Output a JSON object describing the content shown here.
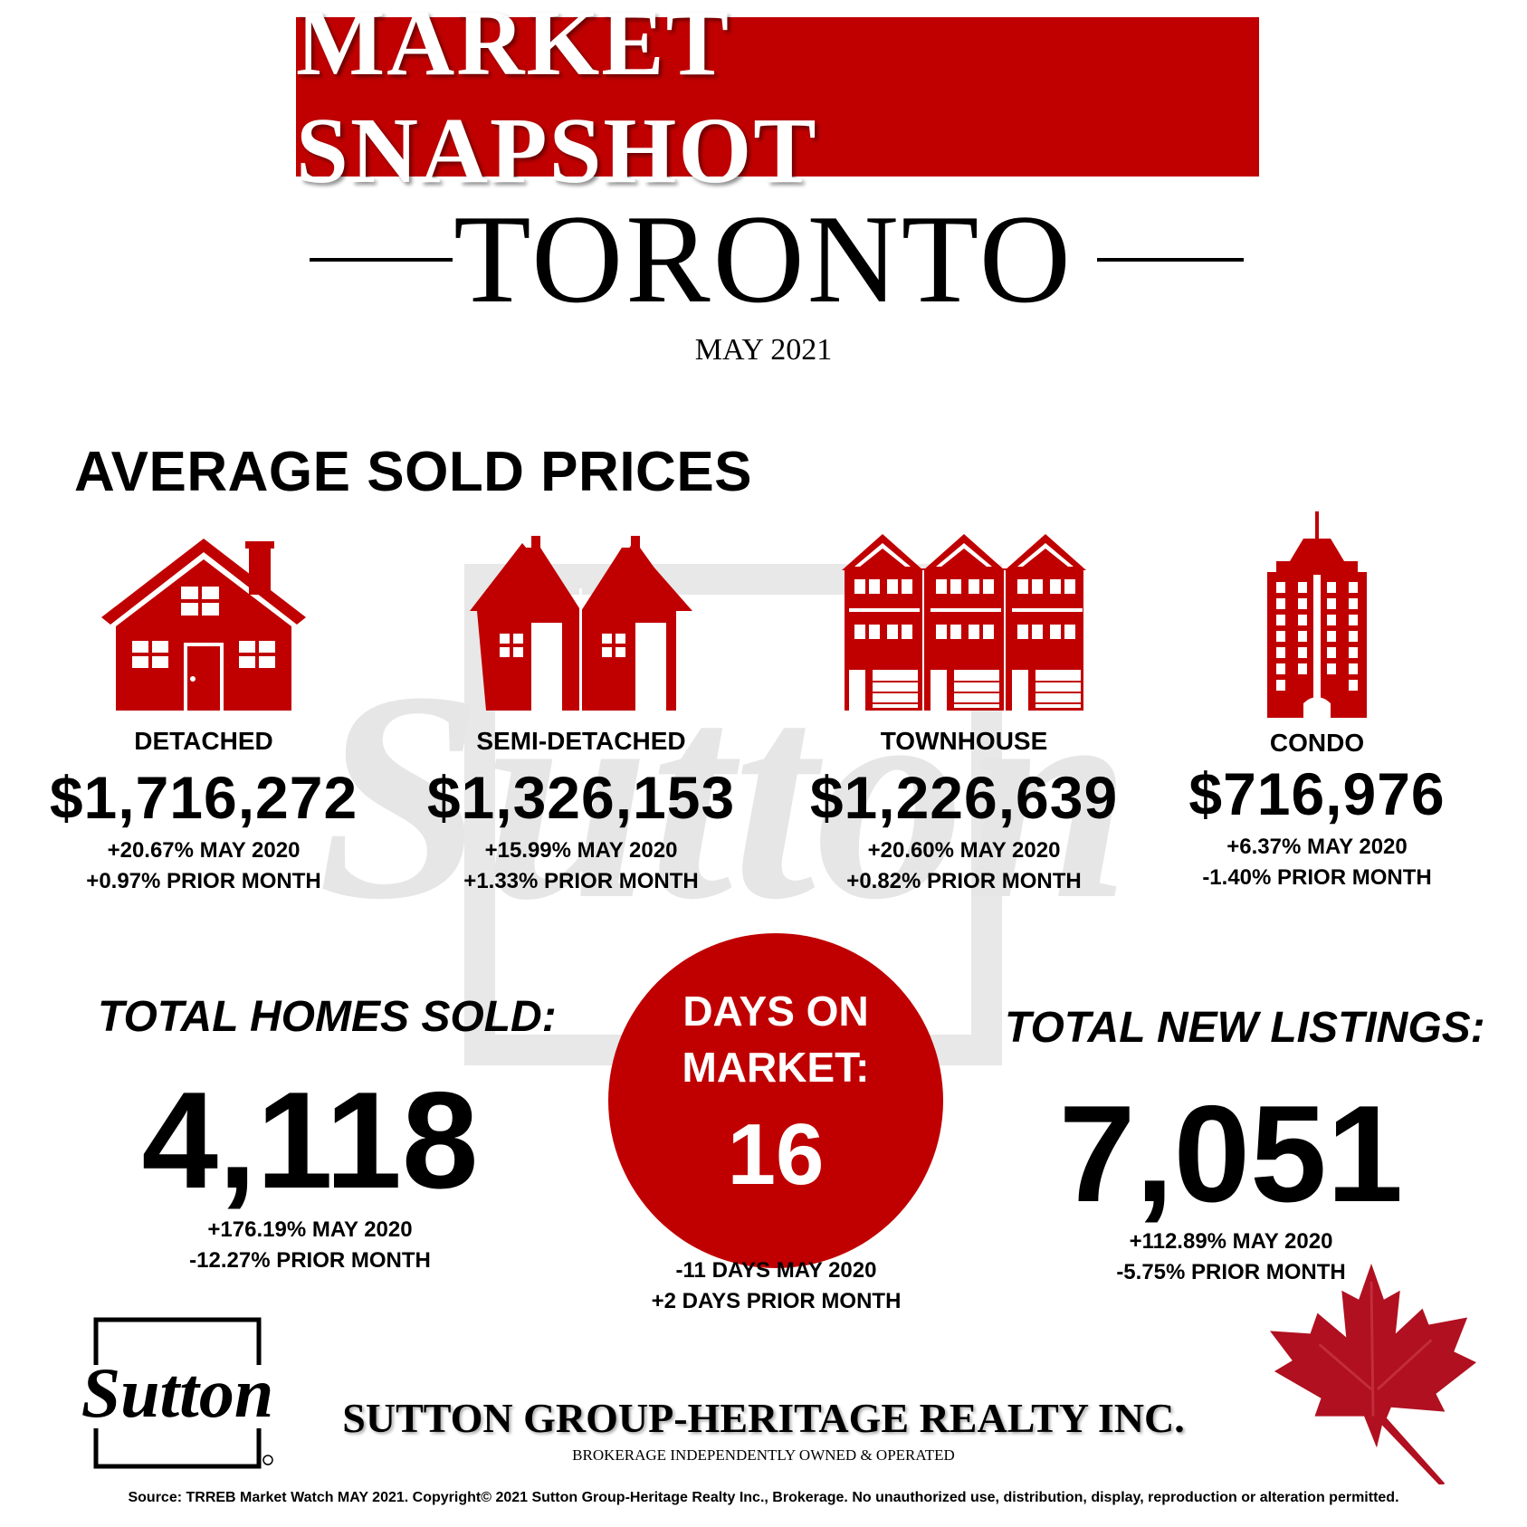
{
  "header": {
    "title": "MARKET SNAPSHOT",
    "city": "TORONTO",
    "month": "MAY 2021"
  },
  "average_prices": {
    "title": "AVERAGE SOLD PRICES",
    "items": [
      {
        "label": "DETACHED",
        "price": "$1,716,272",
        "change_year": "+20.67% MAY 2020",
        "change_month": "+0.97% PRIOR MONTH",
        "icon": "detached-house-icon"
      },
      {
        "label": "SEMI-DETACHED",
        "price": "$1,326,153",
        "change_year": "+15.99% MAY 2020",
        "change_month": "+1.33% PRIOR MONTH",
        "icon": "semi-detached-house-icon"
      },
      {
        "label": "TOWNHOUSE",
        "price": "$1,226,639",
        "change_year": "+20.60% MAY 2020",
        "change_month": "+0.82% PRIOR MONTH",
        "icon": "townhouse-icon"
      },
      {
        "label": "CONDO",
        "price": "$716,976",
        "change_year": "+6.37% MAY 2020",
        "change_month": "-1.40% PRIOR MONTH",
        "icon": "condo-tower-icon"
      }
    ]
  },
  "homes_sold": {
    "title": "TOTAL HOMES SOLD:",
    "value": "4,118",
    "change_year": "+176.19% MAY 2020",
    "change_month": "-12.27% PRIOR MONTH"
  },
  "days_on_market": {
    "label_line1": "DAYS ON",
    "label_line2": "MARKET:",
    "value": "16",
    "change_year": "-11 DAYS MAY 2020",
    "change_month": "+2 DAYS PRIOR MONTH"
  },
  "new_listings": {
    "title": "TOTAL NEW LISTINGS:",
    "value": "7,051",
    "change_year": "+112.89% MAY 2020",
    "change_month": "-5.75% PRIOR MONTH"
  },
  "footer": {
    "logo_text": "Sutton",
    "company": "SUTTON GROUP-HERITAGE REALTY INC.",
    "brokerage": "BROKERAGE INDEPENDENTLY OWNED & OPERATED",
    "source": "Source: TRREB Market Watch MAY 2021. Copyright© 2021 Sutton Group-Heritage Realty Inc., Brokerage. No unauthorized use, distribution, display, reproduction or alteration permitted."
  },
  "colors": {
    "brand_red": "#c00000",
    "watermark_gray": "#e6e6e6",
    "text": "#000000"
  }
}
